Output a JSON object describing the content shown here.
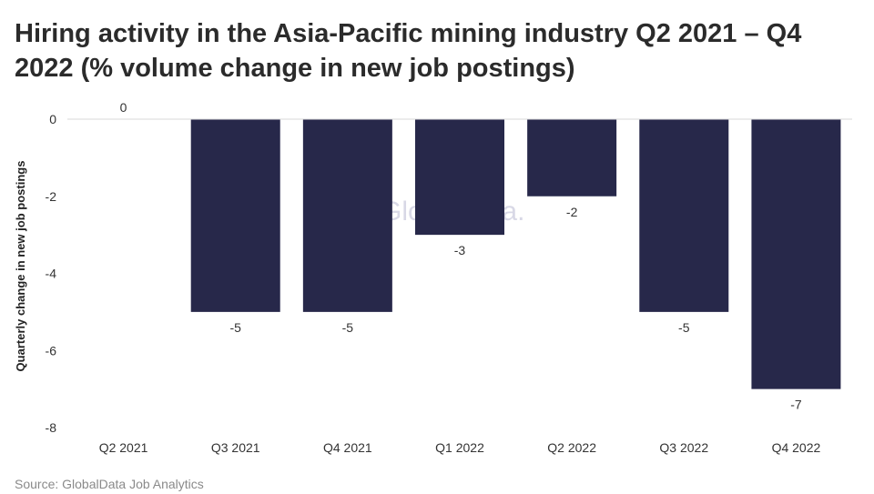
{
  "chart_data": {
    "type": "bar",
    "title": "Hiring activity in the Asia-Pacific mining industry Q2 2021 – Q4 2022 (% volume change in new job postings)",
    "xlabel": "",
    "ylabel": "Quarterly change in new job postings",
    "categories": [
      "Q2 2021",
      "Q3 2021",
      "Q4 2021",
      "Q1 2022",
      "Q2 2022",
      "Q3 2022",
      "Q4 2022"
    ],
    "values": [
      0,
      -5,
      -5,
      -3,
      -2,
      -5,
      -7
    ],
    "value_labels": [
      "0",
      "-5",
      "-5",
      "-3",
      "-2",
      "-5",
      "-7"
    ],
    "ylim": [
      -8,
      0
    ],
    "yticks": [
      0,
      -2,
      -4,
      -6,
      -8
    ],
    "ytick_labels": [
      "0",
      "-2",
      "-4",
      "-6",
      "-8"
    ],
    "grid": false,
    "bar_color": "#27284a",
    "baseline_color": "#d9d9d9"
  },
  "watermark": "GlobalData.",
  "source": "Source: GlobalData Job Analytics"
}
